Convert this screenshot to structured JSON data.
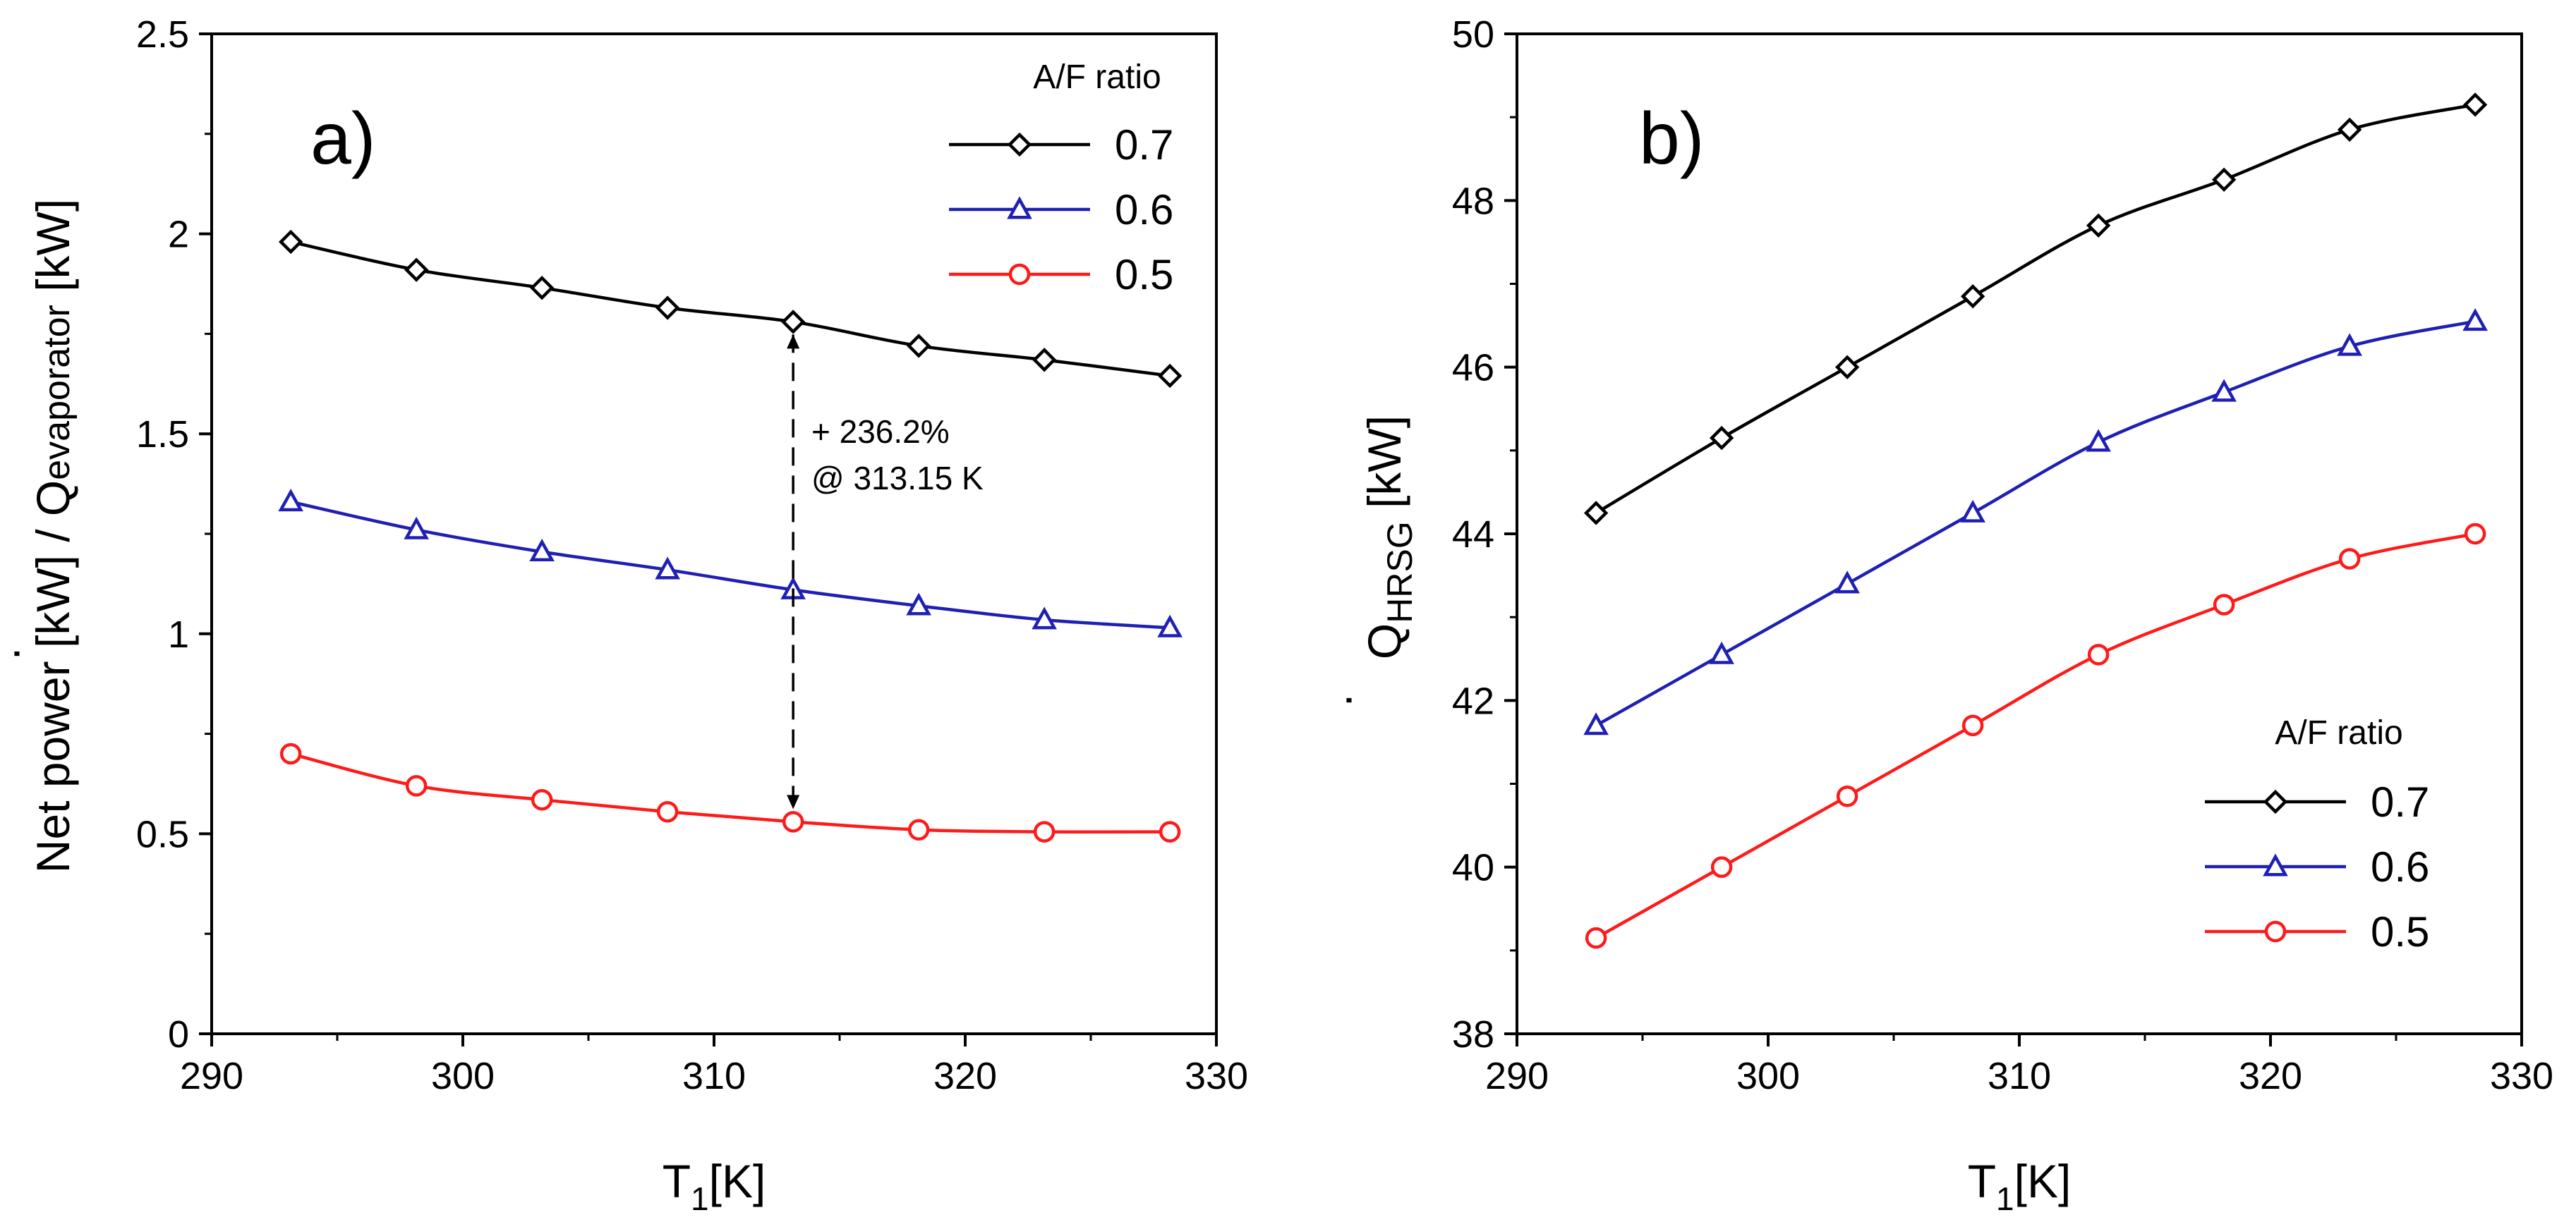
{
  "chart_data": [
    {
      "type": "line",
      "panel_label": "a)",
      "title": "",
      "xlabel_main": "T",
      "xlabel_sub": "1",
      "xlabel_unit": "[K]",
      "ylabel_part1": "Net power [kW] / ",
      "ylabel_dot": "·",
      "ylabel_q": "Q",
      "ylabel_sub": "evaporator",
      "ylabel_unit": " [kW]",
      "xlim": [
        290,
        330
      ],
      "ylim": [
        0,
        2.5
      ],
      "xticks": [
        290,
        300,
        310,
        320,
        330
      ],
      "yticks": [
        0,
        0.5,
        1,
        1.5,
        2,
        2.5
      ],
      "ytick_labels": [
        "0",
        "0.5",
        "1",
        "1.5",
        "2",
        "2.5"
      ],
      "x": [
        293.15,
        298.15,
        303.15,
        308.15,
        313.15,
        318.15,
        323.15,
        328.15
      ],
      "legend_title": "A/F ratio",
      "legend_position": "top-right",
      "series": [
        {
          "name": "0.7",
          "marker": "diamond",
          "color": "#000000",
          "values": [
            1.98,
            1.91,
            1.865,
            1.815,
            1.78,
            1.72,
            1.685,
            1.645
          ]
        },
        {
          "name": "0.6",
          "marker": "triangle",
          "color": "#1f1fb4",
          "values": [
            1.33,
            1.26,
            1.205,
            1.16,
            1.11,
            1.07,
            1.035,
            1.015
          ]
        },
        {
          "name": "0.5",
          "marker": "circle",
          "color": "#ff1a1a",
          "values": [
            0.7,
            0.62,
            0.585,
            0.555,
            0.53,
            0.51,
            0.505,
            0.505
          ]
        }
      ],
      "annotation": {
        "line1": "+ 236.2%",
        "line2": "@ 313.15 K",
        "x": 313.15,
        "y_from": 1.78,
        "y_to": 0.53
      }
    },
    {
      "type": "line",
      "panel_label": "b)",
      "title": "",
      "xlabel_main": "T",
      "xlabel_sub": "1",
      "xlabel_unit": "[K]",
      "ylabel_dot": "·",
      "ylabel_q": "Q",
      "ylabel_sub": "HRSG",
      "ylabel_unit": " [kW]",
      "xlim": [
        290,
        330
      ],
      "ylim": [
        38,
        50
      ],
      "xticks": [
        290,
        300,
        310,
        320,
        330
      ],
      "yticks": [
        38,
        40,
        42,
        44,
        46,
        48,
        50
      ],
      "ytick_labels": [
        "38",
        "40",
        "42",
        "44",
        "46",
        "48",
        "50"
      ],
      "x": [
        293.15,
        298.15,
        303.15,
        308.15,
        313.15,
        318.15,
        323.15,
        328.15
      ],
      "legend_title": "A/F ratio",
      "legend_position": "bottom-right",
      "series": [
        {
          "name": "0.7",
          "marker": "diamond",
          "color": "#000000",
          "values": [
            44.25,
            45.15,
            46.0,
            46.85,
            47.7,
            48.25,
            48.85,
            49.15
          ]
        },
        {
          "name": "0.6",
          "marker": "triangle",
          "color": "#1f1fb4",
          "values": [
            41.7,
            42.55,
            43.4,
            44.25,
            45.1,
            45.7,
            46.25,
            46.55
          ]
        },
        {
          "name": "0.5",
          "marker": "circle",
          "color": "#ff1a1a",
          "values": [
            39.15,
            40.0,
            40.85,
            41.7,
            42.55,
            43.15,
            43.7,
            44.0
          ]
        }
      ]
    }
  ]
}
